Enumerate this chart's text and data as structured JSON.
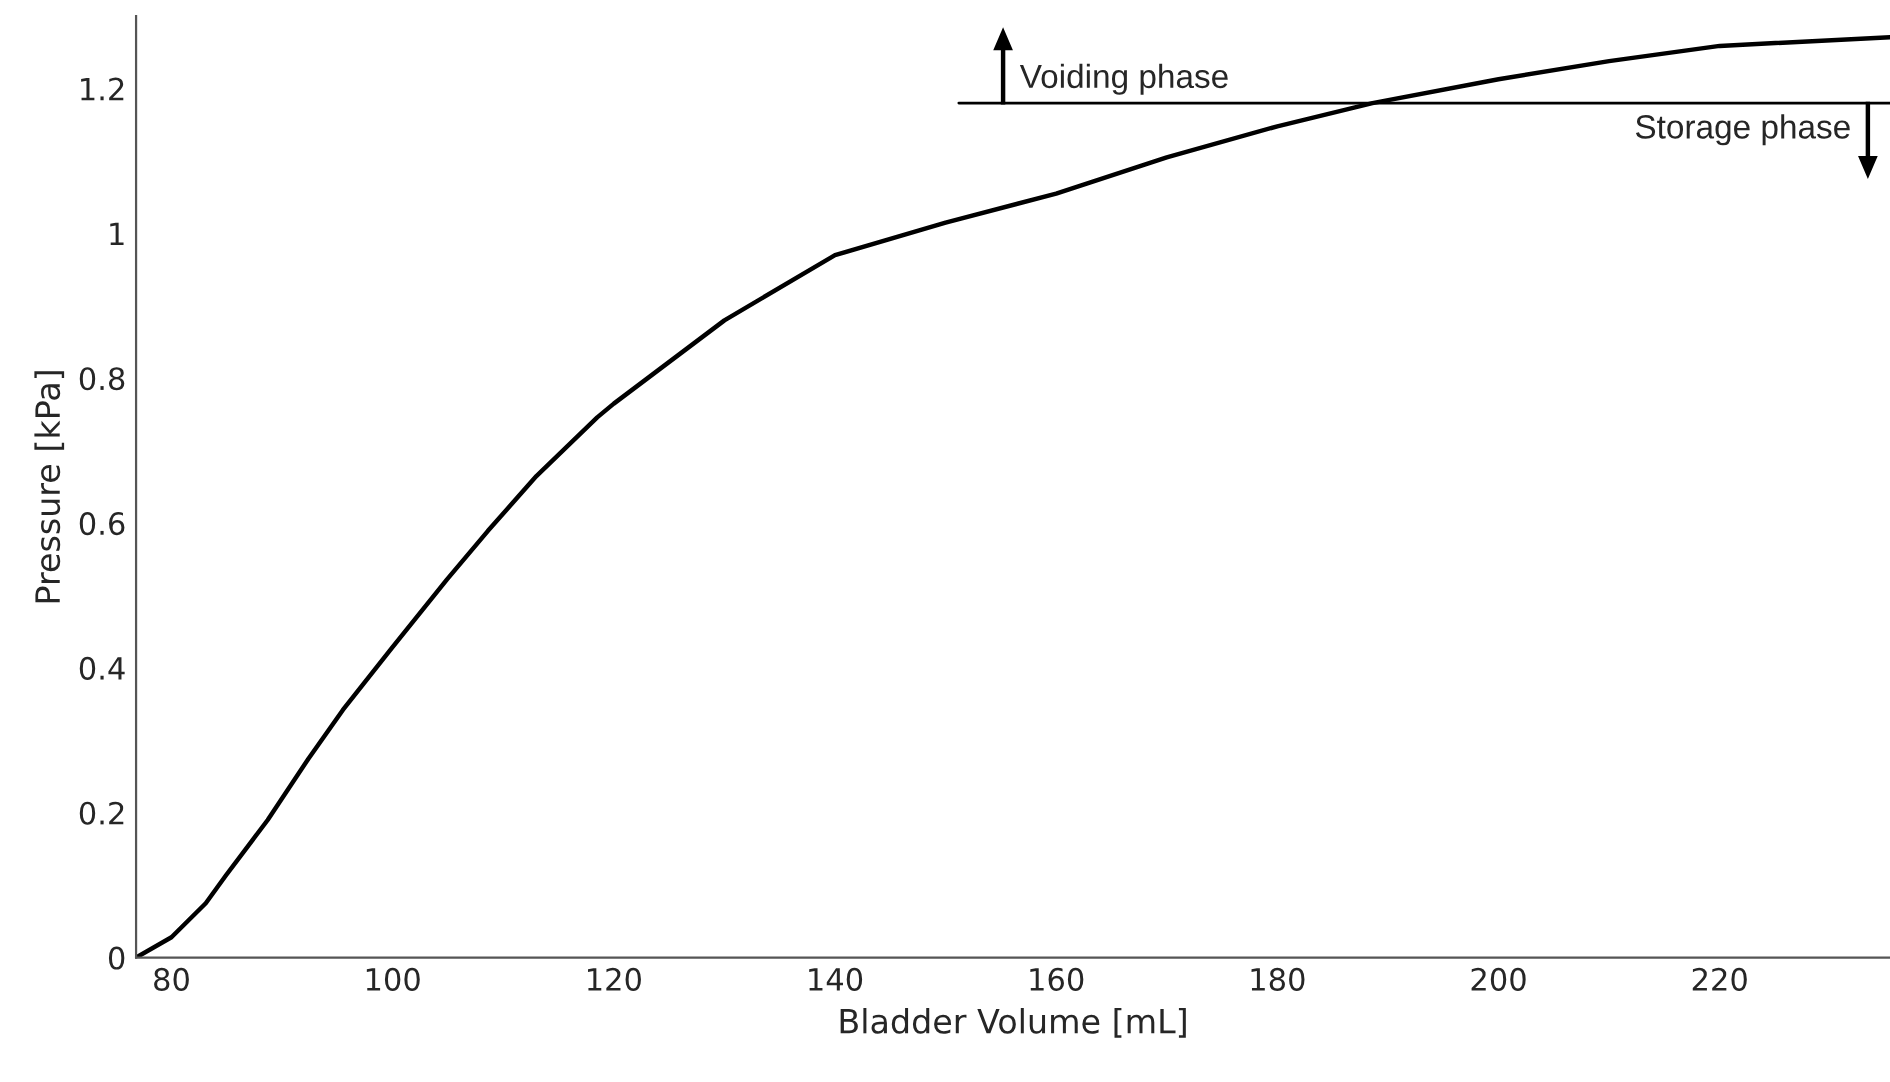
{
  "chart_data": {
    "type": "line",
    "xlabel": "Bladder Volume [mL]",
    "ylabel": "Pressure [kPa]",
    "xlim": [
      76.8,
      235.4
    ],
    "xticks": [
      80,
      100,
      120,
      140,
      160,
      180,
      200,
      220
    ],
    "ylim": [
      0,
      1.3
    ],
    "yticks": [
      0,
      0.2,
      0.4,
      0.6,
      0.8,
      1,
      1.2
    ],
    "grid": false,
    "legend": false,
    "marker": "none",
    "line_style": "solid",
    "series": [
      {
        "color": "#000000",
        "x": [
          76.8,
          80,
          83.1,
          84.9,
          88.7,
          92.4,
          95.5,
          99.9,
          104.9,
          108.6,
          113,
          118.5,
          120,
          130,
          140,
          150,
          160,
          170,
          180,
          188.6,
          200,
          210,
          220,
          235.4
        ],
        "values": [
          0,
          0.028,
          0.075,
          0.113,
          0.19,
          0.275,
          0.342,
          0.427,
          0.522,
          0.589,
          0.665,
          0.746,
          0.765,
          0.88,
          0.97,
          1.015,
          1.055,
          1.105,
          1.148,
          1.18,
          1.213,
          1.238,
          1.259,
          1.271
        ]
      },
      {
        "color": "#000000",
        "x": [
          151.2,
          235.4
        ],
        "values": [
          1.18,
          1.18
        ]
      }
    ],
    "annotations": [
      {
        "text": "Voiding phase",
        "x": 155.2,
        "y": 1.18
      },
      {
        "text": "Storage phase",
        "x": 233.4,
        "y": 1.18
      }
    ]
  }
}
